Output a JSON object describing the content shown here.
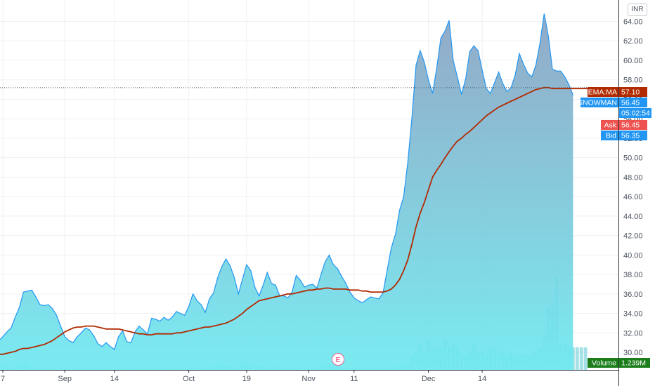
{
  "currency": "INR",
  "earnings_marker": "E",
  "colors": {
    "price_line": "#2196f3",
    "area_top": "#8aa2c2",
    "area_bottom": "#6fe9f0",
    "ema": "#b22a00",
    "volume": "#57c8d2",
    "ask": "#ef5350",
    "bid": "#2196f3",
    "volume_badge": "#1b7e1b"
  },
  "badges": {
    "ema": {
      "name": "EMA:MA",
      "value": "57.10"
    },
    "snowman": {
      "name": "SNOWMAN",
      "value": "56.45"
    },
    "countdown": {
      "value": "05:02:54"
    },
    "ask": {
      "name": "Ask",
      "value": "56.45"
    },
    "bid": {
      "name": "Bid",
      "value": "56.35"
    },
    "volume": {
      "name": "Volume",
      "value": "1.239M"
    }
  },
  "chart_data": {
    "type": "area",
    "y_ticks": [
      "30.00",
      "32.00",
      "34.00",
      "36.00",
      "38.00",
      "40.00",
      "42.00",
      "44.00",
      "46.00",
      "48.00",
      "50.00",
      "52.00",
      "54.00",
      "56.00",
      "58.00",
      "60.00",
      "62.00",
      "64.00"
    ],
    "y_tick_values": [
      30,
      32,
      34,
      36,
      38,
      40,
      42,
      44,
      46,
      48,
      50,
      52,
      54,
      56,
      58,
      60,
      62,
      64
    ],
    "x_ticks": [
      "7",
      "Sep",
      "14",
      "Oct",
      "19",
      "Nov",
      "11",
      "Dec",
      "14"
    ],
    "x_tick_index": [
      0,
      15,
      27,
      45,
      59,
      74,
      85,
      103,
      116
    ],
    "ylim": [
      28.2,
      66.2
    ],
    "last_price": 56.45,
    "series": [
      {
        "type": "area",
        "values": [
          31.6,
          32.1,
          32.5,
          33.6,
          34.6,
          36.2,
          36.3,
          36.4,
          35.7,
          34.9,
          34.8,
          34.9,
          34.5,
          33.8,
          32.7,
          31.6,
          31.2,
          31.0,
          31.6,
          32.0,
          32.5,
          32.3,
          31.7,
          30.9,
          30.6,
          31.0,
          30.6,
          30.3,
          31.6,
          32.2,
          31.1,
          31.0,
          32.1,
          32.7,
          32.3,
          31.9,
          33.5,
          33.4,
          33.2,
          33.6,
          33.3,
          33.6,
          34.2,
          34.0,
          33.8,
          34.7,
          36.0,
          35.3,
          34.9,
          34.1,
          35.5,
          36.1,
          37.7,
          38.8,
          39.6,
          38.9,
          37.7,
          36.0,
          37.5,
          39.0,
          38.4,
          36.7,
          35.8,
          36.9,
          38.2,
          37.1,
          36.9,
          35.8,
          35.8,
          35.6,
          36.2,
          37.9,
          37.4,
          36.7,
          36.9,
          37.0,
          36.6,
          38.0,
          39.3,
          40.0,
          39.0,
          38.6,
          37.8,
          37.1,
          36.2,
          35.6,
          35.3,
          35.1,
          35.4,
          35.7,
          35.6,
          35.5,
          36.1,
          38.4,
          40.7,
          42.1,
          44.6,
          46.0,
          49.5,
          54.1,
          59.5,
          61.0,
          59.8,
          58.0,
          56.6,
          59.2,
          62.3,
          63.0,
          64.1,
          60.0,
          58.3,
          56.5,
          58.1,
          60.9,
          61.5,
          61.0,
          59.0,
          57.1,
          56.6,
          57.7,
          58.8,
          57.6,
          56.8,
          57.2,
          58.5,
          60.7,
          59.6,
          58.7,
          58.3,
          59.5,
          61.8,
          64.8,
          62.5,
          59.1,
          58.9,
          58.9,
          58.3,
          57.5,
          56.4
        ]
      },
      {
        "name": "EMA:MA",
        "type": "line",
        "values": [
          29.8,
          29.9,
          30.0,
          30.1,
          30.3,
          30.4,
          30.4,
          30.5,
          30.6,
          30.7,
          30.8,
          31.0,
          31.2,
          31.5,
          31.8,
          32.1,
          32.3,
          32.5,
          32.6,
          32.6,
          32.7,
          32.7,
          32.7,
          32.6,
          32.5,
          32.4,
          32.4,
          32.4,
          32.4,
          32.3,
          32.2,
          32.1,
          32.0,
          31.9,
          31.9,
          31.8,
          31.8,
          31.9,
          31.9,
          31.9,
          31.9,
          31.9,
          32.0,
          32.0,
          32.1,
          32.2,
          32.3,
          32.4,
          32.5,
          32.6,
          32.6,
          32.7,
          32.8,
          32.9,
          33.0,
          33.2,
          33.4,
          33.7,
          34.0,
          34.4,
          34.7,
          35.0,
          35.3,
          35.4,
          35.5,
          35.6,
          35.7,
          35.8,
          35.9,
          36.0,
          36.0,
          36.1,
          36.2,
          36.3,
          36.4,
          36.4,
          36.5,
          36.5,
          36.6,
          36.6,
          36.5,
          36.5,
          36.5,
          36.5,
          36.4,
          36.4,
          36.4,
          36.3,
          36.3,
          36.2,
          36.2,
          36.2,
          36.2,
          36.3,
          36.5,
          36.9,
          37.5,
          38.4,
          39.5,
          41.1,
          42.9,
          44.3,
          45.4,
          46.7,
          48.0,
          48.7,
          49.3,
          50.0,
          50.6,
          51.2,
          51.7,
          52.0,
          52.4,
          52.7,
          53.1,
          53.5,
          53.9,
          54.3,
          54.6,
          54.9,
          55.2,
          55.4,
          55.6,
          55.8,
          56.0,
          56.2,
          56.4,
          56.6,
          56.8,
          57.0,
          57.1,
          57.2,
          57.2,
          57.1,
          57.1,
          57.1,
          57.1,
          57.1,
          57.1
        ]
      },
      {
        "name": "Volume",
        "type": "bar",
        "values": [
          0.05,
          0.04,
          0.03,
          0.05,
          0.08,
          0.08,
          0.07,
          0.03,
          0.04,
          0.03,
          0.03,
          0.03,
          0.02,
          0.02,
          0.02,
          0.03,
          0.02,
          0.02,
          0.02,
          0.02,
          0.02,
          0.02,
          0.02,
          0.02,
          0.02,
          0.02,
          0.02,
          0.02,
          0.02,
          0.02,
          0.02,
          0.02,
          0.02,
          0.02,
          0.02,
          0.02,
          0.02,
          0.02,
          0.02,
          0.02,
          0.02,
          0.02,
          0.02,
          0.02,
          0.02,
          0.03,
          0.03,
          0.04,
          0.04,
          0.04,
          0.04,
          0.05,
          0.07,
          0.06,
          0.05,
          0.04,
          0.04,
          0.04,
          0.1,
          0.08,
          0.05,
          0.05,
          0.06,
          0.04,
          0.03,
          0.04,
          0.04,
          0.04,
          0.03,
          0.03,
          0.03,
          0.03,
          0.03,
          0.03,
          0.03,
          0.04,
          0.03,
          0.06,
          0.08,
          0.06,
          0.04,
          0.04,
          0.03,
          0.03,
          0.03,
          0.03,
          0.03,
          0.03,
          0.03,
          0.03,
          0.03,
          0.03,
          0.03,
          0.03,
          0.04,
          0.04,
          0.05,
          0.07,
          0.08,
          0.2,
          0.25,
          0.35,
          0.25,
          0.4,
          0.3,
          0.3,
          0.3,
          0.4,
          0.3,
          0.35,
          0.3,
          0.2,
          0.2,
          0.25,
          0.35,
          0.25,
          0.25,
          0.2,
          0.3,
          0.3,
          0.2,
          0.25,
          0.2,
          0.25,
          0.2,
          0.2,
          0.2,
          0.2,
          0.2,
          0.25,
          0.3,
          0.45,
          0.85,
          0.9,
          1.25,
          0.35,
          0.35,
          0.3,
          0.3,
          0.3,
          0.3,
          0.3
        ]
      }
    ],
    "volume_max": 1.5
  }
}
